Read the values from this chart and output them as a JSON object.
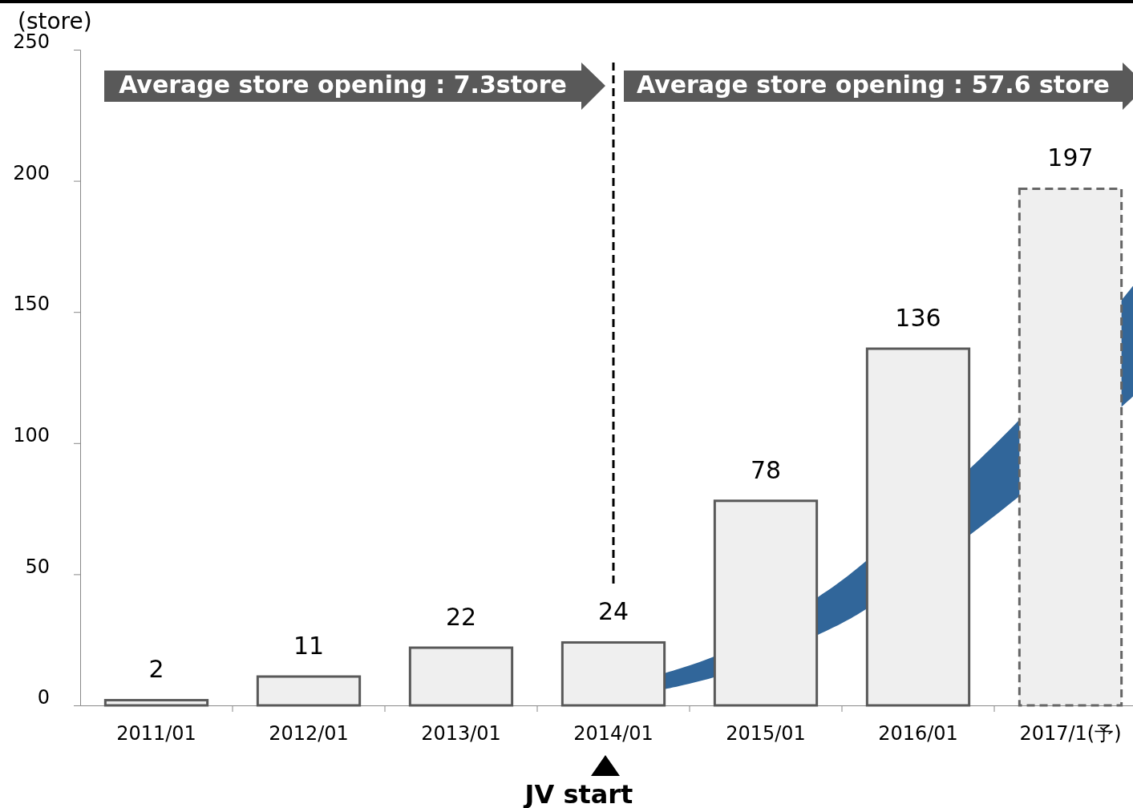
{
  "chart_data": {
    "type": "bar",
    "ylabel": "(store)",
    "categories": [
      "2011/01",
      "2012/01",
      "2013/01",
      "2014/01",
      "2015/01",
      "2016/01",
      "2017/1(予)"
    ],
    "series": [
      {
        "color": "#efefef",
        "values": [
          2,
          11,
          22,
          24,
          78,
          136,
          null
        ],
        "line_style": "solid"
      },
      {
        "color": "#efefef",
        "values": [
          null,
          null,
          null,
          null,
          null,
          null,
          197
        ],
        "line_style": "dashed"
      }
    ],
    "ylim": [
      0,
      250
    ],
    "yticks": [
      0,
      50,
      100,
      150,
      200,
      250
    ],
    "data_labels": true,
    "ref_lines": [
      {
        "axis": "x",
        "value": "2014/01",
        "line_style": "dashed",
        "color": "#000000"
      }
    ],
    "annotations": [
      "Average store opening : 7.3store",
      "Average store opening : 57.6 store",
      "JV start"
    ]
  }
}
